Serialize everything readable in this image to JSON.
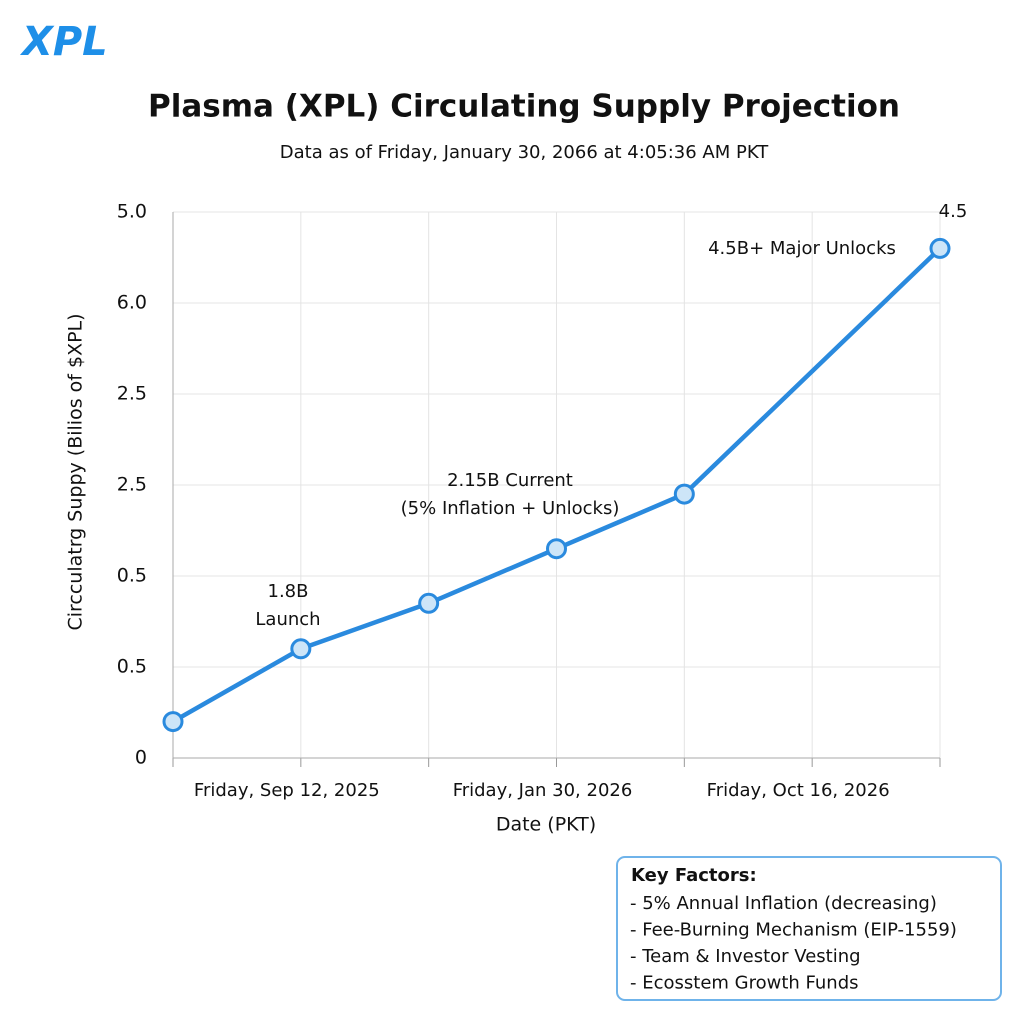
{
  "logo": "XPL",
  "chart_data": {
    "type": "line",
    "title": "Plasma (XPL) Circulating Supply Projection",
    "subtitle": "Data as of Friday, January 30, 2066 at 4:05:36 AM PKT",
    "x_label": "Date (PKT)",
    "y_label": "Circculatrg Suppy (Bilios of $XPL)",
    "categories": [
      null,
      "Friday, Sep 12, 2025",
      null,
      "Friday, Jan 30, 2026",
      null,
      "Friday, Oct 16, 2026",
      null
    ],
    "xlim": [
      0,
      6
    ],
    "ylim": [
      0,
      6
    ],
    "yticks": [
      0,
      {
        "value": 1,
        "label": "0.5"
      },
      {
        "value": 2,
        "label": "0.5"
      },
      {
        "value": 3,
        "label": "2.5"
      },
      {
        "value": 4,
        "label": "2.5"
      },
      {
        "value": 5,
        "label": "6.0"
      },
      {
        "value": 6,
        "label": "5.0"
      }
    ],
    "grid": true,
    "series": [
      {
        "name": "Circulating Supply",
        "color": "#2a8ade",
        "x": [
          0,
          1,
          2,
          3,
          4,
          6
        ],
        "values": [
          0.4,
          1.2,
          1.7,
          2.3,
          2.9,
          5.6
        ]
      }
    ],
    "annotations": [
      {
        "lines": [
          "1.8B",
          "Launch"
        ]
      },
      {
        "lines": [
          "2.15B Current",
          "(5% Inflation + Unlocks)"
        ]
      },
      {
        "lines": [
          "4.5B+ Major Unlocks"
        ]
      },
      {
        "lines": [
          "4.5"
        ]
      }
    ]
  },
  "key_factors": {
    "title": "Key Factors:",
    "items": [
      "- 5% Annual Inflation (decreasing)",
      "- Fee-Burning Mechanism (EIP-1559)",
      "- Team & Investor Vesting",
      "- Ecosstem Growth Funds"
    ]
  }
}
